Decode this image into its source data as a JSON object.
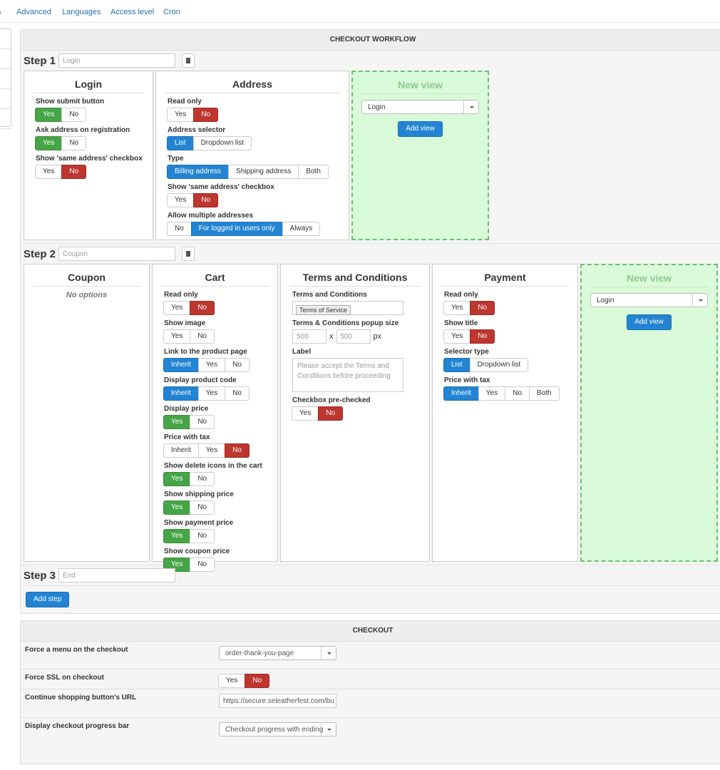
{
  "nav": [
    "s",
    "Advanced",
    "Languages",
    "Access level",
    "Cron"
  ],
  "workflow": {
    "title": "CHECKOUT WORKFLOW",
    "steps": [
      {
        "label": "Step 1",
        "placeholder": "Login",
        "views": [
          {
            "title": "Login",
            "options": [
              {
                "label": "Show submit button",
                "type": "buttons",
                "buttons": [
                  "Yes",
                  "No"
                ],
                "active": 0,
                "style": "success"
              },
              {
                "label": "Ask address on registration",
                "type": "buttons",
                "buttons": [
                  "Yes",
                  "No"
                ],
                "active": 0,
                "style": "success"
              },
              {
                "label": "Show 'same address' checkbox",
                "type": "buttons",
                "buttons": [
                  "Yes",
                  "No"
                ],
                "active": 1,
                "style": "danger"
              }
            ]
          },
          {
            "title": "Address",
            "options": [
              {
                "label": "Read only",
                "type": "buttons",
                "buttons": [
                  "Yes",
                  "No"
                ],
                "active": 1,
                "style": "danger"
              },
              {
                "label": "Address selector",
                "type": "buttons",
                "buttons": [
                  "List",
                  "Dropdown list"
                ],
                "active": 0,
                "style": "primary"
              },
              {
                "label": "Type",
                "type": "buttons",
                "buttons": [
                  "Billing address",
                  "Shipping address",
                  "Both"
                ],
                "active": 0,
                "style": "primary"
              },
              {
                "label": "Show 'same address' checkbox",
                "type": "buttons",
                "buttons": [
                  "Yes",
                  "No"
                ],
                "active": 1,
                "style": "danger"
              },
              {
                "label": "Allow multiple addresses",
                "type": "buttons",
                "buttons": [
                  "No",
                  "For logged in users only",
                  "Always"
                ],
                "active": 1,
                "style": "primary"
              }
            ]
          }
        ],
        "new_view": {
          "title": "New view",
          "select": "Login",
          "button": "Add view"
        }
      },
      {
        "label": "Step 2",
        "placeholder": "Coupon",
        "views": [
          {
            "title": "Coupon",
            "note": "No options",
            "options": []
          },
          {
            "title": "Cart",
            "options": [
              {
                "label": "Read only",
                "type": "buttons",
                "buttons": [
                  "Yes",
                  "No"
                ],
                "active": 1,
                "style": "danger"
              },
              {
                "label": "Show image",
                "type": "buttons",
                "buttons": [
                  "Yes",
                  "No"
                ]
              },
              {
                "label": "Link to the product page",
                "type": "buttons",
                "buttons": [
                  "Inherit",
                  "Yes",
                  "No"
                ],
                "active": 0,
                "style": "primary"
              },
              {
                "label": "Display product code",
                "type": "buttons",
                "buttons": [
                  "Inherit",
                  "Yes",
                  "No"
                ],
                "active": 0,
                "style": "primary"
              },
              {
                "label": "Display price",
                "type": "buttons",
                "buttons": [
                  "Yes",
                  "No"
                ],
                "active": 0,
                "style": "success"
              },
              {
                "label": "Price with tax",
                "type": "buttons",
                "buttons": [
                  "Inherit",
                  "Yes",
                  "No"
                ],
                "active": 2,
                "style": "danger"
              },
              {
                "label": "Show delete icons in the cart",
                "type": "buttons",
                "buttons": [
                  "Yes",
                  "No"
                ],
                "active": 0,
                "style": "success"
              },
              {
                "label": "Show shipping price",
                "type": "buttons",
                "buttons": [
                  "Yes",
                  "No"
                ],
                "active": 0,
                "style": "success"
              },
              {
                "label": "Show payment price",
                "type": "buttons",
                "buttons": [
                  "Yes",
                  "No"
                ],
                "active": 0,
                "style": "success"
              },
              {
                "label": "Show coupon price",
                "type": "buttons",
                "buttons": [
                  "Yes",
                  "No"
                ],
                "active": 0,
                "style": "success"
              }
            ]
          },
          {
            "title": "Terms and Conditions",
            "options": [
              {
                "label": "Terms and Conditions",
                "type": "tag",
                "tag": "Terms of Service"
              },
              {
                "label": "Terms & Conditions popup size",
                "type": "size",
                "width": 500,
                "separator": "x",
                "height": 500,
                "unit": "px"
              },
              {
                "label": "Label",
                "type": "textarea",
                "placeholder": "Please accept the Terms and Conditions before proceeding"
              },
              {
                "label": "Checkbox pre-checked",
                "type": "buttons",
                "buttons": [
                  "Yes",
                  "No"
                ],
                "active": 1,
                "style": "danger"
              }
            ]
          },
          {
            "title": "Payment",
            "options": [
              {
                "label": "Read only",
                "type": "buttons",
                "buttons": [
                  "Yes",
                  "No"
                ],
                "active": 1,
                "style": "danger"
              },
              {
                "label": "Show title",
                "type": "buttons",
                "buttons": [
                  "Yes",
                  "No"
                ],
                "active": 1,
                "style": "danger"
              },
              {
                "label": "Selector type",
                "type": "buttons",
                "buttons": [
                  "List",
                  "Dropdown list"
                ],
                "active": 0,
                "style": "primary"
              },
              {
                "label": "Price with tax",
                "type": "buttons",
                "buttons": [
                  "Inherit",
                  "Yes",
                  "No",
                  "Both"
                ],
                "active": 0,
                "style": "primary"
              }
            ]
          }
        ],
        "new_view": {
          "title": "New view",
          "select": "Login",
          "button": "Add view"
        }
      },
      {
        "label": "Step 3",
        "placeholder": "End",
        "views": []
      }
    ],
    "add_step": "Add step"
  },
  "checkout": {
    "title": "CHECKOUT",
    "rows": [
      {
        "label": "Force a menu on the checkout",
        "type": "select",
        "value": "order-thank-you-page"
      },
      {
        "label": "Force SSL on checkout",
        "type": "buttons",
        "buttons": [
          "Yes",
          "No"
        ],
        "active": 1,
        "style": "danger"
      },
      {
        "label": "Continue shopping button's URL",
        "type": "input",
        "value": "https://secure.seleatherfest.com/bu"
      },
      {
        "label": "Display checkout progress bar",
        "type": "select",
        "value": "Checkout progress with ending"
      }
    ]
  }
}
